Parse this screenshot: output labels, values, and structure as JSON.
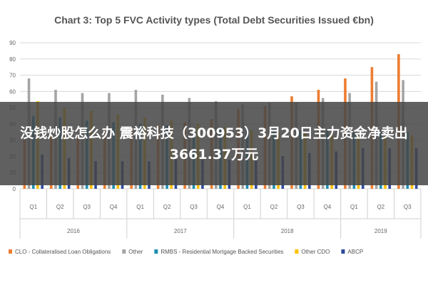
{
  "overlay": {
    "headline": "没钱炒股怎么办 震裕科技（300953）3月20日主力资金净卖出3661.37万元"
  },
  "chart_data": {
    "type": "bar",
    "title": "Chart 3: Top 5 FVC Activity types (Total Debt Securities Issued €bn)",
    "ylim": [
      0,
      90
    ],
    "yticks": [
      0,
      10,
      20,
      30,
      40,
      50,
      60,
      70,
      80,
      90
    ],
    "grid": true,
    "legend_position": "bottom",
    "categories": [
      "Q1",
      "Q2",
      "Q3",
      "Q4",
      "Q1",
      "Q2",
      "Q3",
      "Q4",
      "Q1",
      "Q2",
      "Q3",
      "Q4",
      "Q1",
      "Q2",
      "Q3"
    ],
    "years": [
      {
        "label": "2016",
        "start": 0,
        "count": 4
      },
      {
        "label": "2017",
        "start": 4,
        "count": 4
      },
      {
        "label": "2018",
        "start": 8,
        "count": 4
      },
      {
        "label": "2019",
        "start": 12,
        "count": 3
      }
    ],
    "series": [
      {
        "name": "CLO - Collateralised Loan Obligations",
        "color": "#ED7D31",
        "values": [
          30,
          32,
          34,
          36,
          38,
          39,
          41,
          43,
          49,
          51,
          57,
          61,
          68,
          75,
          83
        ]
      },
      {
        "name": "Other",
        "color": "#A5A5A5",
        "values": [
          68,
          61,
          59,
          59,
          61,
          58,
          56,
          54,
          52,
          53,
          53,
          56,
          59,
          66,
          67
        ]
      },
      {
        "name": "RMBS - Residential Mortgage Backed Securities",
        "color": "#1F8FB0",
        "values": [
          45,
          44,
          42,
          41,
          40,
          39,
          38,
          38,
          37,
          37,
          36,
          36,
          35,
          35,
          35
        ]
      },
      {
        "name": "Other CDO",
        "color": "#FFC000",
        "values": [
          54,
          50,
          48,
          46,
          44,
          42,
          40,
          38,
          36,
          35,
          34,
          34,
          33,
          33,
          33
        ]
      },
      {
        "name": "ABCP",
        "color": "#2F4B9E",
        "values": [
          21,
          19,
          17,
          17,
          17,
          19,
          18,
          18,
          18,
          20,
          22,
          23,
          25,
          25,
          25
        ]
      }
    ]
  }
}
